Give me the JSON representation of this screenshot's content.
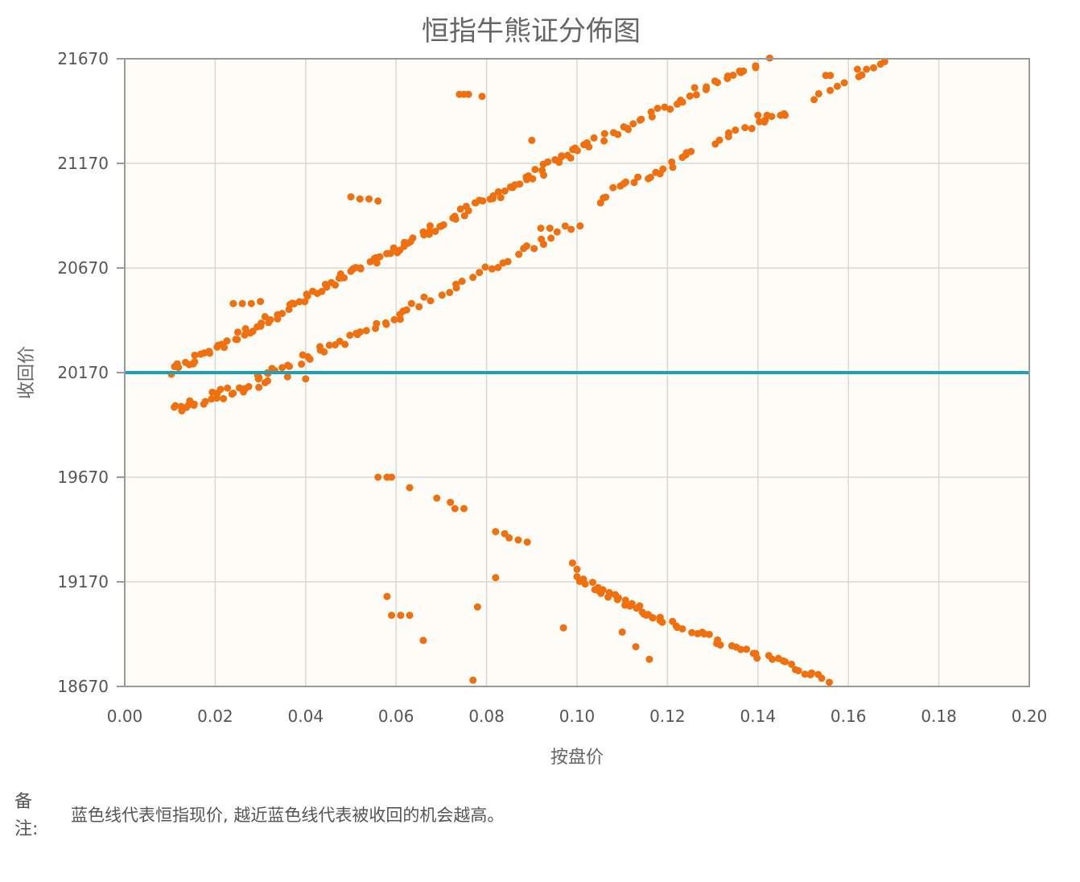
{
  "chart_data": {
    "type": "scatter",
    "title": "恒指牛熊证分佈图",
    "xlabel": "按盘价",
    "ylabel": "收回价",
    "xlim": [
      0,
      0.2
    ],
    "ylim": [
      18670,
      21670
    ],
    "xticks": [
      "0.00",
      "0.02",
      "0.04",
      "0.06",
      "0.08",
      "0.10",
      "0.12",
      "0.14",
      "0.16",
      "0.18",
      "0.20"
    ],
    "yticks": [
      "18670",
      "19170",
      "19670",
      "20170",
      "20670",
      "21170",
      "21670"
    ],
    "grid": true,
    "reference_line": {
      "y": 20170,
      "color": "#1aa3b8"
    },
    "point_color": "#f07010",
    "segments": [
      {
        "x0": 0.01,
        "y0": 20170,
        "x1": 0.1,
        "y1": 21230,
        "n": 120,
        "jitter": 20
      },
      {
        "x0": 0.1,
        "y0": 21230,
        "x1": 0.142,
        "y1": 21670,
        "n": 40,
        "jitter": 20
      },
      {
        "x0": 0.01,
        "y0": 19990,
        "x1": 0.032,
        "y1": 20140,
        "n": 30,
        "jitter": 25
      },
      {
        "x0": 0.03,
        "y0": 20150,
        "x1": 0.06,
        "y1": 20430,
        "n": 30,
        "jitter": 20
      },
      {
        "x0": 0.06,
        "y0": 20440,
        "x1": 0.1,
        "y1": 20890,
        "n": 30,
        "jitter": 20
      },
      {
        "x0": 0.105,
        "y0": 21000,
        "x1": 0.126,
        "y1": 21220,
        "n": 20,
        "jitter": 20
      },
      {
        "x0": 0.13,
        "y0": 21270,
        "x1": 0.145,
        "y1": 21410,
        "n": 12,
        "jitter": 10
      },
      {
        "x0": 0.152,
        "y0": 21480,
        "x1": 0.169,
        "y1": 21660,
        "n": 10,
        "jitter": 10
      },
      {
        "x0": 0.1,
        "y0": 19180,
        "x1": 0.118,
        "y1": 18990,
        "n": 30,
        "jitter": 15
      },
      {
        "x0": 0.118,
        "y0": 18990,
        "x1": 0.156,
        "y1": 18700,
        "n": 35,
        "jitter": 15
      }
    ],
    "points": [
      [
        0.074,
        21500
      ],
      [
        0.075,
        21500
      ],
      [
        0.076,
        21500
      ],
      [
        0.079,
        21490
      ],
      [
        0.05,
        21010
      ],
      [
        0.052,
        21000
      ],
      [
        0.054,
        21000
      ],
      [
        0.056,
        20990
      ],
      [
        0.09,
        21280
      ],
      [
        0.024,
        20500
      ],
      [
        0.026,
        20500
      ],
      [
        0.028,
        20500
      ],
      [
        0.03,
        20510
      ],
      [
        0.036,
        20150
      ],
      [
        0.04,
        20140
      ],
      [
        0.056,
        19670
      ],
      [
        0.058,
        19670
      ],
      [
        0.059,
        19670
      ],
      [
        0.063,
        19620
      ],
      [
        0.069,
        19570
      ],
      [
        0.072,
        19550
      ],
      [
        0.073,
        19520
      ],
      [
        0.075,
        19520
      ],
      [
        0.082,
        19410
      ],
      [
        0.084,
        19400
      ],
      [
        0.085,
        19380
      ],
      [
        0.087,
        19370
      ],
      [
        0.089,
        19360
      ],
      [
        0.058,
        19100
      ],
      [
        0.059,
        19010
      ],
      [
        0.061,
        19010
      ],
      [
        0.063,
        19010
      ],
      [
        0.066,
        18890
      ],
      [
        0.078,
        19050
      ],
      [
        0.082,
        19190
      ],
      [
        0.077,
        18700
      ],
      [
        0.097,
        18950
      ],
      [
        0.099,
        19260
      ],
      [
        0.1,
        19230
      ],
      [
        0.11,
        18930
      ],
      [
        0.113,
        18860
      ],
      [
        0.116,
        18800
      ],
      [
        0.092,
        20860
      ],
      [
        0.094,
        20860
      ],
      [
        0.14,
        21400
      ],
      [
        0.142,
        21400
      ],
      [
        0.145,
        21400
      ],
      [
        0.146,
        21400
      ],
      [
        0.155,
        21590
      ],
      [
        0.156,
        21590
      ],
      [
        0.162,
        21620
      ],
      [
        0.164,
        21620
      ]
    ]
  },
  "note": {
    "label": "备注:",
    "text": "蓝色线代表恒指现价, 越近蓝色线代表被收回的机会越高。"
  }
}
